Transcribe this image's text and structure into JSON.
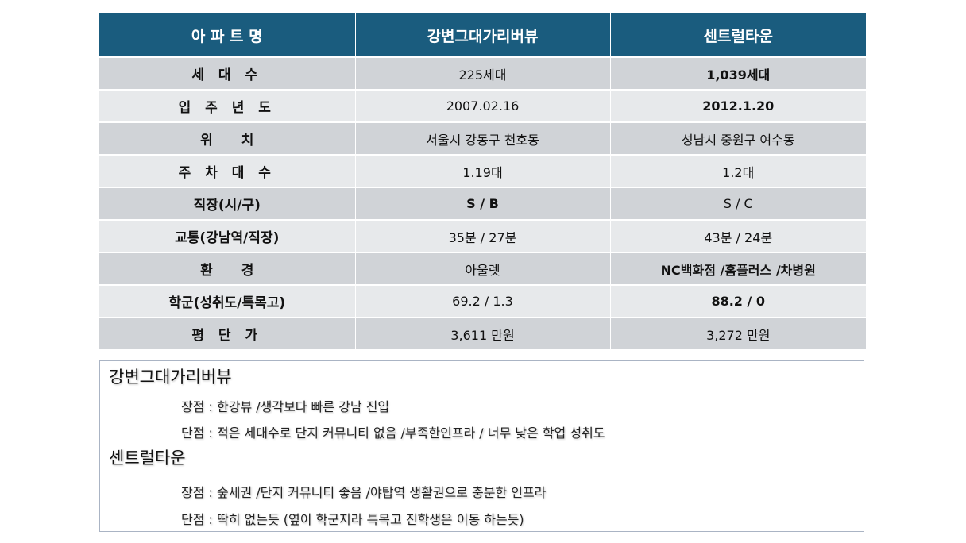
{
  "table": {
    "headers": [
      "아 파 트 명",
      "강변그대가리버뷰",
      "센트럴타운"
    ],
    "rows": [
      {
        "label": "세 대 수",
        "a": "225세대",
        "b": "1,039세대"
      },
      {
        "label": "입 주 년 도",
        "a": "2007.02.16",
        "b": "2012.1.20"
      },
      {
        "label": "위치",
        "a": "서울시 강동구 천호동",
        "b": "성남시 중원구 여수동"
      },
      {
        "label": "주 차 대 수",
        "a": "1.19대",
        "b": "1.2대"
      },
      {
        "label": "직장(시/구)",
        "a": "S / B",
        "b": "S / C"
      },
      {
        "label": "교통(강남역/직장)",
        "a": "35분 / 27분",
        "b": "43분 / 24분"
      },
      {
        "label": "환경",
        "a": "아울렛",
        "b": "NC백화점 /홈플러스 /차병원"
      },
      {
        "label": "학군(성취도/특목고)",
        "a": "69.2 / 1.3",
        "b": "88.2 / 0"
      },
      {
        "label": "평 단 가",
        "a": "3,611 만원",
        "b": "3,272 만원"
      }
    ]
  },
  "notes": {
    "apt1": {
      "title": "강변그대가리버뷰",
      "pros": "장점 : 한강뷰 /생각보다 빠른 강남 진입",
      "cons": "단점 : 적은 세대수로 단지 커뮤니티 없음 /부족한인프라 / 너무 낮은 학업 성취도"
    },
    "apt2": {
      "title": "센트럴타운",
      "pros": "장점 : 숲세권 /단지 커뮤니티 좋음 /야탑역 생활권으로 충분한 인프라",
      "cons": "단점 : 딱히 없는듯 (옆이 학군지라 특목고 진학생은 이동 하는듯)"
    }
  }
}
